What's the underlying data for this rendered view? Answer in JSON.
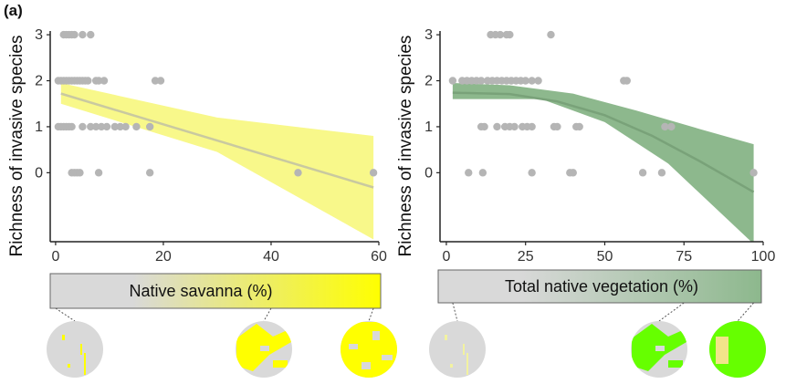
{
  "panel_label": "(a)",
  "colors": {
    "point": "#b5b5b5",
    "left_band": "#f8f88a",
    "left_line": "#c9c9a0",
    "right_band": "#8db88d",
    "right_line": "#79a279",
    "gray_land": "#d9d9d9",
    "savanna_yellow": "#ffff00",
    "vegetation_green": "#66ff00"
  },
  "chart_data": [
    {
      "type": "scatter",
      "ylabel": "Richness of invasive species",
      "xlabel": "Native savanna (%)",
      "xlim": [
        -1,
        60
      ],
      "ylim": [
        -1.5,
        3.2
      ],
      "xticks": [
        0,
        20,
        40,
        60
      ],
      "yticks": [
        0,
        1,
        2,
        3
      ],
      "gradient": [
        "#d9d9d9",
        "#ffff00"
      ],
      "points": [
        [
          1.5,
          3
        ],
        [
          2,
          3
        ],
        [
          2.5,
          3
        ],
        [
          3,
          3
        ],
        [
          3.5,
          3
        ],
        [
          5,
          3
        ],
        [
          6.5,
          3
        ],
        [
          0.5,
          2
        ],
        [
          1,
          2
        ],
        [
          1.5,
          2
        ],
        [
          2,
          2
        ],
        [
          2.5,
          2
        ],
        [
          3,
          2
        ],
        [
          3.5,
          2
        ],
        [
          4,
          2
        ],
        [
          4.5,
          2
        ],
        [
          5,
          2
        ],
        [
          5.5,
          2
        ],
        [
          6,
          2
        ],
        [
          7.5,
          2
        ],
        [
          8,
          2
        ],
        [
          9,
          2
        ],
        [
          18.5,
          2
        ],
        [
          19.5,
          2
        ],
        [
          0.5,
          1
        ],
        [
          1,
          1
        ],
        [
          1.5,
          1
        ],
        [
          2,
          1
        ],
        [
          2.5,
          1
        ],
        [
          3,
          1
        ],
        [
          5,
          1
        ],
        [
          6.5,
          1
        ],
        [
          7.5,
          1
        ],
        [
          8.5,
          1
        ],
        [
          9.5,
          1
        ],
        [
          11,
          1
        ],
        [
          12,
          1
        ],
        [
          13,
          1
        ],
        [
          15,
          1
        ],
        [
          17.5,
          1
        ],
        [
          3,
          0
        ],
        [
          3.5,
          0
        ],
        [
          4,
          0
        ],
        [
          4.5,
          0
        ],
        [
          8,
          0
        ],
        [
          17.5,
          0
        ],
        [
          45,
          0
        ],
        [
          59,
          0
        ]
      ],
      "fit": {
        "x": [
          1,
          59
        ],
        "y": [
          1.72,
          -0.32
        ]
      },
      "band_lower": [
        [
          1,
          1.5
        ],
        [
          30,
          0.45
        ],
        [
          59,
          -1.45
        ]
      ],
      "band_upper": [
        [
          1,
          1.95
        ],
        [
          30,
          1.2
        ],
        [
          59,
          0.8
        ]
      ],
      "inset_positions": [
        0,
        40,
        59
      ]
    },
    {
      "type": "scatter",
      "ylabel": "Richness of invasive species",
      "xlabel": "Total native vegetation (%)",
      "xlim": [
        -2,
        100
      ],
      "ylim": [
        -1.5,
        3.2
      ],
      "xticks": [
        0,
        25,
        50,
        75,
        100
      ],
      "yticks": [
        0,
        1,
        2,
        3
      ],
      "gradient": [
        "#d9d9d9",
        "#8db88d"
      ],
      "points": [
        [
          14,
          3
        ],
        [
          15.5,
          3
        ],
        [
          17,
          3
        ],
        [
          19,
          3
        ],
        [
          20,
          3
        ],
        [
          33,
          3
        ],
        [
          2,
          2
        ],
        [
          5,
          2
        ],
        [
          6.5,
          2
        ],
        [
          8,
          2
        ],
        [
          9.5,
          2
        ],
        [
          11,
          2
        ],
        [
          13,
          2
        ],
        [
          14.5,
          2
        ],
        [
          16,
          2
        ],
        [
          17.5,
          2
        ],
        [
          19,
          2
        ],
        [
          20.5,
          2
        ],
        [
          22,
          2
        ],
        [
          23.5,
          2
        ],
        [
          25,
          2
        ],
        [
          27,
          2
        ],
        [
          29,
          2
        ],
        [
          56,
          2
        ],
        [
          57,
          2
        ],
        [
          11,
          1
        ],
        [
          12,
          1
        ],
        [
          16,
          1
        ],
        [
          18.5,
          1
        ],
        [
          20,
          1
        ],
        [
          21.5,
          1
        ],
        [
          24,
          1
        ],
        [
          25.5,
          1
        ],
        [
          27,
          1
        ],
        [
          34,
          1
        ],
        [
          35,
          1
        ],
        [
          41,
          1
        ],
        [
          42,
          1
        ],
        [
          69,
          1
        ],
        [
          71,
          1
        ],
        [
          7,
          0
        ],
        [
          11.5,
          0
        ],
        [
          27,
          0
        ],
        [
          39,
          0
        ],
        [
          40,
          0
        ],
        [
          62,
          0
        ],
        [
          68,
          0
        ],
        [
          97,
          0
        ]
      ],
      "fit": [
        [
          2,
          1.74
        ],
        [
          20,
          1.71
        ],
        [
          35,
          1.55
        ],
        [
          50,
          1.25
        ],
        [
          65,
          0.8
        ],
        [
          80,
          0.25
        ],
        [
          97,
          -0.42
        ]
      ],
      "band_lower": [
        [
          2,
          1.6
        ],
        [
          30,
          1.6
        ],
        [
          50,
          1.1
        ],
        [
          70,
          0.2
        ],
        [
          97,
          -1.55
        ]
      ],
      "band_upper": [
        [
          2,
          1.95
        ],
        [
          20,
          1.9
        ],
        [
          40,
          1.72
        ],
        [
          60,
          1.35
        ],
        [
          80,
          0.95
        ],
        [
          97,
          0.62
        ]
      ],
      "inset_positions": [
        2,
        75,
        97
      ]
    }
  ]
}
